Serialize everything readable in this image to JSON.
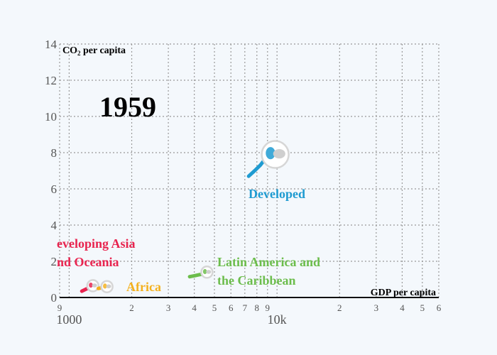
{
  "chart_data": {
    "type": "line",
    "year_label": "1959",
    "ylabel_main": "CO",
    "ylabel_sub": "2",
    "ylabel_rest": " per capita",
    "xlabel": "GDP per capita",
    "x_scale": "log",
    "xlim": [
      900,
      60000
    ],
    "ylim": [
      0,
      14
    ],
    "y_ticks": [
      "0",
      "2",
      "4",
      "6",
      "8",
      "10",
      "12",
      "14"
    ],
    "y_tick_values": [
      0,
      2,
      4,
      6,
      8,
      10,
      12,
      14
    ],
    "x_minor_ticks": [
      {
        "value": 900,
        "label": "9"
      },
      {
        "value": 2000,
        "label": "2"
      },
      {
        "value": 3000,
        "label": "3"
      },
      {
        "value": 4000,
        "label": "4"
      },
      {
        "value": 5000,
        "label": "5"
      },
      {
        "value": 6000,
        "label": "6"
      },
      {
        "value": 7000,
        "label": "7"
      },
      {
        "value": 8000,
        "label": "8"
      },
      {
        "value": 9000,
        "label": "9"
      },
      {
        "value": 20000,
        "label": "2"
      },
      {
        "value": 30000,
        "label": "3"
      },
      {
        "value": 40000,
        "label": "4"
      },
      {
        "value": 50000,
        "label": "5"
      },
      {
        "value": 60000,
        "label": "6"
      }
    ],
    "x_major_ticks": [
      {
        "value": 1000,
        "label": "1000"
      },
      {
        "value": 10000,
        "label": "10k"
      }
    ],
    "grid": true,
    "series": [
      {
        "name": "Developed",
        "color": "#1f9bd1",
        "x": [
          7300,
          7800,
          8300,
          8700,
          9200,
          9800
        ],
        "y": [
          6.7,
          7.0,
          7.3,
          7.6,
          7.8,
          7.9
        ],
        "label_lines": [
          "Developed"
        ]
      },
      {
        "name": "Latin America and the Caribbean",
        "color": "#6cbd4c",
        "x": [
          3800,
          4000,
          4200,
          4400,
          4600
        ],
        "y": [
          1.15,
          1.2,
          1.25,
          1.3,
          1.4
        ],
        "label_lines": [
          "Latin America and",
          "the Caribbean"
        ]
      },
      {
        "name": "Developing Asia and Oceania",
        "color": "#e8244f",
        "x": [
          1150,
          1200,
          1250,
          1300
        ],
        "y": [
          0.35,
          0.45,
          0.55,
          0.65
        ],
        "label_lines": [
          "eveloping Asia",
          "nd Oceania"
        ]
      },
      {
        "name": "Africa",
        "color": "#f4b11e",
        "x": [
          1380,
          1450,
          1520
        ],
        "y": [
          0.5,
          0.55,
          0.6
        ],
        "label_lines": [
          "Africa"
        ]
      }
    ]
  }
}
